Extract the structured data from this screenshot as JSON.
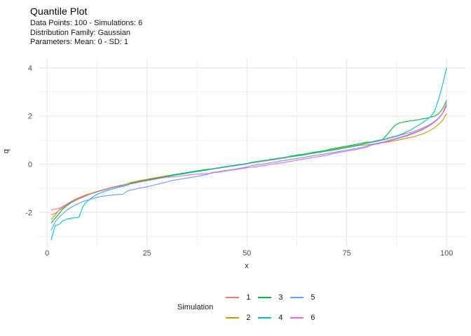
{
  "header": {
    "title": "Quantile Plot",
    "subtitle_lines": [
      "Data Points: 100 - Simulations: 6",
      "Distribution Family: Gaussian",
      "Parameters: Mean: 0 - SD: 1"
    ]
  },
  "legend": {
    "title": "Simulation",
    "items": [
      {
        "label": "1",
        "color": "#F8766D"
      },
      {
        "label": "2",
        "color": "#B79F00"
      },
      {
        "label": "3",
        "color": "#00BA38"
      },
      {
        "label": "4",
        "color": "#00BFC4"
      },
      {
        "label": "5",
        "color": "#619CFF"
      },
      {
        "label": "6",
        "color": "#F564E3"
      }
    ]
  },
  "chart_data": {
    "type": "line",
    "title": "Quantile Plot",
    "xlabel": "x",
    "ylabel": "q",
    "grid": true,
    "legend_position": "bottom",
    "x": {
      "start": 1,
      "end": 100,
      "step": 1
    },
    "axes": {
      "x": {
        "major_ticks": [
          0,
          25,
          50,
          75,
          100
        ],
        "minor_ticks": [
          12.5,
          37.5,
          62.5,
          87.5
        ],
        "range": [
          -2.2,
          105.0
        ]
      },
      "y": {
        "major_ticks": [
          -2,
          0,
          2,
          4
        ],
        "minor_ticks": [
          -3,
          -1,
          1,
          3
        ],
        "range": [
          -3.45,
          4.4
        ]
      }
    },
    "series": [
      {
        "name": "1",
        "color": "#F8766D",
        "values": [
          -2.1,
          -2.05,
          -1.92,
          -1.8,
          -1.68,
          -1.58,
          -1.49,
          -1.42,
          -1.34,
          -1.28,
          -1.22,
          -1.17,
          -1.12,
          -1.07,
          -1.02,
          -0.98,
          -0.94,
          -0.9,
          -0.87,
          -0.83,
          -0.77,
          -0.74,
          -0.7,
          -0.67,
          -0.64,
          -0.61,
          -0.58,
          -0.55,
          -0.52,
          -0.49,
          -0.47,
          -0.44,
          -0.41,
          -0.39,
          -0.36,
          -0.33,
          -0.3,
          -0.28,
          -0.25,
          -0.23,
          -0.22,
          -0.19,
          -0.17,
          -0.14,
          -0.12,
          -0.09,
          -0.07,
          -0.04,
          -0.02,
          0.01,
          0.04,
          0.07,
          0.09,
          0.12,
          0.14,
          0.17,
          0.19,
          0.22,
          0.24,
          0.27,
          0.31,
          0.33,
          0.36,
          0.38,
          0.41,
          0.44,
          0.47,
          0.49,
          0.52,
          0.55,
          0.59,
          0.62,
          0.65,
          0.68,
          0.71,
          0.74,
          0.77,
          0.8,
          0.84,
          0.87,
          0.89,
          0.93,
          0.96,
          1.0,
          1.04,
          1.09,
          1.13,
          1.18,
          1.23,
          1.28,
          1.31,
          1.37,
          1.44,
          1.5,
          1.58,
          1.67,
          1.78,
          1.92,
          2.12,
          2.55
        ]
      },
      {
        "name": "2",
        "color": "#B79F00",
        "values": [
          -2.3,
          -2.12,
          -1.9,
          -1.78,
          -1.65,
          -1.55,
          -1.46,
          -1.39,
          -1.32,
          -1.26,
          -1.21,
          -1.16,
          -1.11,
          -1.06,
          -1.02,
          -0.97,
          -0.93,
          -0.89,
          -0.86,
          -0.82,
          -0.76,
          -0.73,
          -0.69,
          -0.66,
          -0.63,
          -0.6,
          -0.57,
          -0.54,
          -0.51,
          -0.48,
          -0.46,
          -0.43,
          -0.4,
          -0.38,
          -0.35,
          -0.32,
          -0.29,
          -0.27,
          -0.24,
          -0.22,
          -0.2,
          -0.17,
          -0.15,
          -0.12,
          -0.1,
          -0.07,
          -0.05,
          -0.02,
          0.0,
          0.03,
          0.06,
          0.09,
          0.11,
          0.14,
          0.16,
          0.19,
          0.21,
          0.24,
          0.26,
          0.29,
          0.3,
          0.32,
          0.35,
          0.37,
          0.4,
          0.43,
          0.46,
          0.48,
          0.51,
          0.54,
          0.56,
          0.59,
          0.62,
          0.65,
          0.68,
          0.71,
          0.74,
          0.77,
          0.79,
          0.8,
          0.82,
          0.85,
          0.87,
          0.89,
          0.91,
          0.94,
          0.97,
          1.0,
          1.04,
          1.08,
          1.11,
          1.15,
          1.2,
          1.26,
          1.33,
          1.42,
          1.52,
          1.65,
          1.82,
          2.1
        ]
      },
      {
        "name": "3",
        "color": "#00BA38",
        "values": [
          -2.45,
          -2.25,
          -2.05,
          -1.85,
          -1.72,
          -1.6,
          -1.52,
          -1.44,
          -1.37,
          -1.3,
          -1.23,
          -1.18,
          -1.13,
          -1.08,
          -1.04,
          -0.99,
          -0.95,
          -0.91,
          -0.88,
          -0.84,
          -0.79,
          -0.76,
          -0.72,
          -0.69,
          -0.66,
          -0.63,
          -0.6,
          -0.57,
          -0.54,
          -0.51,
          -0.46,
          -0.43,
          -0.4,
          -0.38,
          -0.35,
          -0.32,
          -0.29,
          -0.27,
          -0.24,
          -0.22,
          -0.2,
          -0.18,
          -0.15,
          -0.12,
          -0.1,
          -0.07,
          -0.05,
          -0.02,
          0.0,
          0.03,
          0.06,
          0.09,
          0.12,
          0.14,
          0.17,
          0.19,
          0.22,
          0.24,
          0.27,
          0.29,
          0.34,
          0.36,
          0.39,
          0.41,
          0.44,
          0.47,
          0.5,
          0.52,
          0.55,
          0.58,
          0.63,
          0.66,
          0.69,
          0.72,
          0.75,
          0.78,
          0.81,
          0.84,
          0.88,
          0.91,
          0.92,
          0.96,
          0.99,
          1.03,
          1.21,
          1.41,
          1.6,
          1.7,
          1.74,
          1.77,
          1.8,
          1.82,
          1.85,
          1.88,
          1.91,
          1.95,
          1.99,
          2.1,
          2.3,
          2.65
        ]
      },
      {
        "name": "4",
        "color": "#00BFC4",
        "values": [
          -3.15,
          -2.56,
          -2.5,
          -2.35,
          -2.28,
          -2.25,
          -2.22,
          -2.2,
          -1.75,
          -1.55,
          -1.42,
          -1.3,
          -1.22,
          -1.15,
          -1.1,
          -1.05,
          -1.0,
          -0.95,
          -0.92,
          -0.88,
          -0.81,
          -0.78,
          -0.74,
          -0.71,
          -0.68,
          -0.65,
          -0.62,
          -0.59,
          -0.56,
          -0.53,
          -0.49,
          -0.46,
          -0.43,
          -0.41,
          -0.38,
          -0.35,
          -0.32,
          -0.3,
          -0.27,
          -0.25,
          -0.21,
          -0.18,
          -0.16,
          -0.13,
          -0.11,
          -0.08,
          -0.06,
          -0.03,
          -0.01,
          0.02,
          0.07,
          0.1,
          0.12,
          0.15,
          0.17,
          0.2,
          0.22,
          0.25,
          0.27,
          0.3,
          0.32,
          0.34,
          0.37,
          0.39,
          0.42,
          0.45,
          0.48,
          0.5,
          0.53,
          0.56,
          0.58,
          0.61,
          0.64,
          0.67,
          0.7,
          0.73,
          0.76,
          0.79,
          0.83,
          0.86,
          0.91,
          0.95,
          0.98,
          1.02,
          1.06,
          1.11,
          1.15,
          1.2,
          1.26,
          1.34,
          1.42,
          1.52,
          1.62,
          1.72,
          1.84,
          1.97,
          2.2,
          2.7,
          3.3,
          4.0
        ]
      },
      {
        "name": "5",
        "color": "#619CFF",
        "values": [
          -2.75,
          -2.4,
          -2.2,
          -2.05,
          -1.9,
          -1.8,
          -1.7,
          -1.62,
          -1.55,
          -1.5,
          -1.45,
          -1.4,
          -1.36,
          -1.33,
          -1.31,
          -1.29,
          -1.27,
          -1.26,
          -1.25,
          -1.12,
          -1.07,
          -1.04,
          -1.0,
          -0.97,
          -0.94,
          -0.9,
          -0.86,
          -0.82,
          -0.78,
          -0.74,
          -0.69,
          -0.66,
          -0.63,
          -0.61,
          -0.58,
          -0.55,
          -0.52,
          -0.5,
          -0.46,
          -0.43,
          -0.36,
          -0.33,
          -0.31,
          -0.28,
          -0.26,
          -0.23,
          -0.21,
          -0.18,
          -0.15,
          -0.12,
          -0.07,
          -0.04,
          -0.02,
          0.01,
          0.03,
          0.06,
          0.08,
          0.11,
          0.14,
          0.17,
          0.2,
          0.22,
          0.25,
          0.27,
          0.3,
          0.33,
          0.36,
          0.38,
          0.41,
          0.44,
          0.46,
          0.49,
          0.52,
          0.55,
          0.58,
          0.61,
          0.64,
          0.67,
          0.71,
          0.74,
          0.81,
          0.85,
          0.88,
          0.92,
          0.96,
          1.01,
          1.05,
          1.1,
          1.15,
          1.2,
          1.26,
          1.32,
          1.39,
          1.46,
          1.55,
          1.65,
          1.76,
          1.9,
          2.1,
          2.45
        ]
      },
      {
        "name": "6",
        "color": "#F564E3",
        "values": [
          -1.9,
          -1.87,
          -1.84,
          -1.75,
          -1.65,
          -1.57,
          -1.5,
          -1.43,
          -1.36,
          -1.3,
          -1.23,
          -1.18,
          -1.13,
          -1.08,
          -1.04,
          -0.99,
          -0.95,
          -0.91,
          -0.88,
          -0.84,
          -0.82,
          -0.79,
          -0.75,
          -0.72,
          -0.69,
          -0.66,
          -0.63,
          -0.6,
          -0.57,
          -0.54,
          -0.54,
          -0.52,
          -0.5,
          -0.48,
          -0.46,
          -0.44,
          -0.42,
          -0.41,
          -0.4,
          -0.39,
          -0.38,
          -0.35,
          -0.33,
          -0.3,
          -0.28,
          -0.25,
          -0.23,
          -0.2,
          -0.18,
          -0.15,
          -0.13,
          -0.11,
          -0.09,
          -0.06,
          -0.04,
          -0.01,
          0.01,
          0.04,
          0.06,
          0.09,
          0.12,
          0.15,
          0.18,
          0.2,
          0.23,
          0.26,
          0.29,
          0.31,
          0.34,
          0.37,
          0.42,
          0.45,
          0.48,
          0.51,
          0.54,
          0.57,
          0.6,
          0.63,
          0.67,
          0.7,
          0.78,
          0.82,
          0.85,
          0.89,
          0.93,
          0.98,
          1.02,
          1.07,
          1.12,
          1.17,
          1.23,
          1.29,
          1.36,
          1.43,
          1.52,
          1.62,
          1.74,
          1.89,
          2.1,
          2.4
        ]
      }
    ],
    "style": {
      "grid_major_color": "#E3E3E3",
      "grid_minor_color": "#EFEFEF",
      "tick_label_color": "#4d4d4d",
      "background": "#ffffff"
    }
  }
}
